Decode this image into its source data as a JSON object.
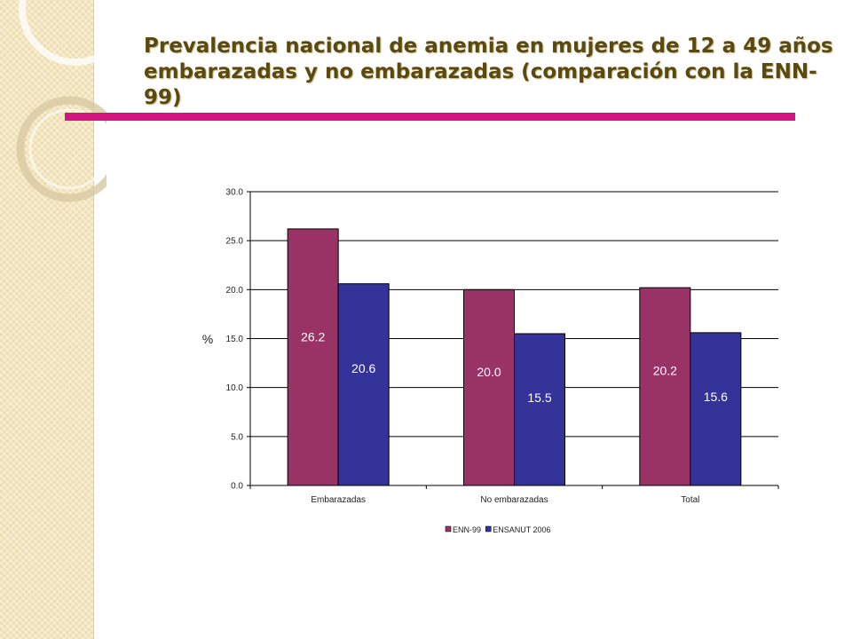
{
  "slide": {
    "title": "Prevalencia nacional de anemia en mujeres de 12 a 49 años embarazadas y no embarazadas (comparación con la ENN-99)",
    "accent_color": "#d4157f"
  },
  "chart_data": {
    "type": "bar",
    "title": "",
    "xlabel": "",
    "ylabel": "%",
    "ylim": [
      0,
      30
    ],
    "yticks": [
      "0.0",
      "5.0",
      "10.0",
      "15.0",
      "20.0",
      "25.0",
      "30.0"
    ],
    "categories": [
      "Embarazadas",
      "No embarazadas",
      "Total"
    ],
    "grid": true,
    "legend_position": "bottom",
    "series": [
      {
        "name": "ENN-99",
        "color": "#993366",
        "values": [
          26.2,
          20.0,
          20.2
        ],
        "labels": [
          "26.2",
          "20.0",
          "20.2"
        ]
      },
      {
        "name": "ENSANUT 2006",
        "color": "#333399",
        "values": [
          20.6,
          15.5,
          15.6
        ],
        "labels": [
          "20.6",
          "15.5",
          "15.6"
        ]
      }
    ]
  }
}
